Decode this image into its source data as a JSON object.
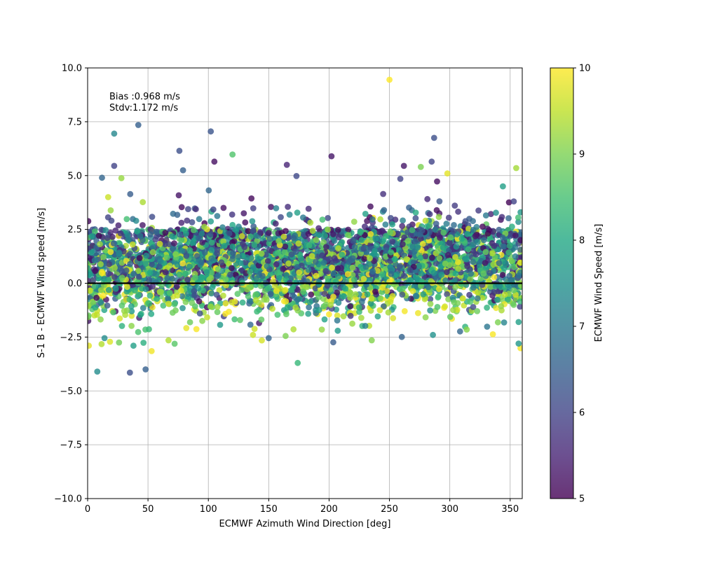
{
  "chart_data": {
    "type": "scatter",
    "title": "",
    "xlabel": "ECMWF Azimuth Wind Direction [deg]",
    "ylabel": "S-1 B - ECMWF Wind speed [m/s]",
    "xlim": [
      0,
      360
    ],
    "ylim": [
      -10,
      10
    ],
    "x_ticks": [
      0,
      50,
      100,
      150,
      200,
      250,
      300,
      350
    ],
    "y_ticks": [
      -10.0,
      -7.5,
      -5.0,
      -2.5,
      0.0,
      2.5,
      5.0,
      7.5,
      10.0
    ],
    "x_tick_labels": [
      "0",
      "50",
      "100",
      "150",
      "200",
      "250",
      "300",
      "350"
    ],
    "y_tick_labels": [
      "−10.0",
      "−7.5",
      "−5.0",
      "−2.5",
      "0.0",
      "2.5",
      "5.0",
      "7.5",
      "10.0"
    ],
    "grid": true,
    "reference_line_y": 0,
    "annotations": [
      "Bias :0.968 m/s",
      "Stdv:1.172 m/s"
    ],
    "colorbar": {
      "label": "ECMWF Wind Speed [m/s]",
      "range": [
        5,
        10
      ],
      "ticks": [
        5,
        6,
        7,
        8,
        9,
        10
      ],
      "tick_labels": [
        "5",
        "6",
        "7",
        "8",
        "9",
        "10"
      ],
      "colormap": "viridis"
    },
    "marker_alpha": 0.8,
    "sample_points": [
      {
        "x": 250,
        "y": 9.45,
        "c": 10.0
      },
      {
        "x": 42,
        "y": 7.35,
        "c": 6.5
      },
      {
        "x": 22,
        "y": 6.95,
        "c": 7.3
      },
      {
        "x": 102,
        "y": 7.05,
        "c": 6.3
      },
      {
        "x": 76,
        "y": 6.15,
        "c": 6.2
      },
      {
        "x": 120,
        "y": 5.98,
        "c": 8.6
      },
      {
        "x": 202,
        "y": 5.9,
        "c": 5.3
      },
      {
        "x": 287,
        "y": 6.75,
        "c": 6.2
      },
      {
        "x": 285,
        "y": 5.65,
        "c": 6.0
      },
      {
        "x": 22,
        "y": 5.45,
        "c": 6.0
      },
      {
        "x": 105,
        "y": 5.65,
        "c": 5.2
      },
      {
        "x": 165,
        "y": 5.5,
        "c": 5.5
      },
      {
        "x": 262,
        "y": 5.45,
        "c": 5.3
      },
      {
        "x": 276,
        "y": 5.4,
        "c": 9.0
      },
      {
        "x": 298,
        "y": 5.1,
        "c": 9.8
      },
      {
        "x": 355,
        "y": 5.35,
        "c": 9.3
      },
      {
        "x": 17,
        "y": 4.0,
        "c": 9.6
      },
      {
        "x": 28,
        "y": 4.88,
        "c": 9.2
      },
      {
        "x": 79,
        "y": 5.25,
        "c": 6.5
      },
      {
        "x": 173,
        "y": 4.98,
        "c": 6.1
      },
      {
        "x": 259,
        "y": 4.85,
        "c": 6.0
      },
      {
        "x": 344,
        "y": 4.5,
        "c": 7.8
      },
      {
        "x": 13,
        "y": 1.9,
        "c": 7.2
      },
      {
        "x": 1,
        "y": -2.9,
        "c": 9.8
      },
      {
        "x": 8,
        "y": -4.1,
        "c": 7.4
      },
      {
        "x": 35,
        "y": -4.15,
        "c": 6.2
      },
      {
        "x": 48,
        "y": -4.0,
        "c": 6.5
      },
      {
        "x": 53,
        "y": -3.15,
        "c": 9.9
      },
      {
        "x": 38,
        "y": -2.9,
        "c": 7.8
      },
      {
        "x": 26,
        "y": -2.75,
        "c": 8.9
      },
      {
        "x": 14,
        "y": -2.55,
        "c": 7.4
      },
      {
        "x": 67,
        "y": -2.65,
        "c": 9.4
      },
      {
        "x": 137,
        "y": -2.4,
        "c": 9.6
      },
      {
        "x": 150,
        "y": -2.55,
        "c": 6.6
      },
      {
        "x": 174,
        "y": -3.7,
        "c": 8.3
      },
      {
        "x": 164,
        "y": -2.45,
        "c": 9.0
      },
      {
        "x": 230,
        "y": -1.98,
        "c": 7.2
      },
      {
        "x": 286,
        "y": -2.4,
        "c": 7.5
      },
      {
        "x": 314,
        "y": -2.15,
        "c": 9.1
      },
      {
        "x": 357,
        "y": -2.8,
        "c": 7.6
      },
      {
        "x": 357,
        "y": -1.8,
        "c": 7.8
      },
      {
        "x": 0.5,
        "y": -1.75,
        "c": 5.3
      },
      {
        "x": 142,
        "y": -1.85,
        "c": 5.3
      },
      {
        "x": 194,
        "y": -2.15,
        "c": 9.2
      },
      {
        "x": 95,
        "y": -1.75,
        "c": 9.1
      },
      {
        "x": 330,
        "y": 3.15,
        "c": 7.0
      },
      {
        "x": 353,
        "y": 3.8,
        "c": 6.0
      }
    ]
  }
}
